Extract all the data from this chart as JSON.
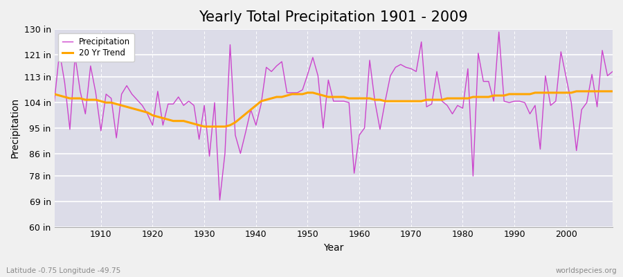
{
  "title": "Yearly Total Precipitation 1901 - 2009",
  "xlabel": "Year",
  "ylabel": "Precipitation",
  "subtitle_left": "Latitude -0.75 Longitude -49.75",
  "subtitle_right": "worldspecies.org",
  "years": [
    1901,
    1902,
    1903,
    1904,
    1905,
    1906,
    1907,
    1908,
    1909,
    1910,
    1911,
    1912,
    1913,
    1914,
    1915,
    1916,
    1917,
    1918,
    1919,
    1920,
    1921,
    1922,
    1923,
    1924,
    1925,
    1926,
    1927,
    1928,
    1929,
    1930,
    1931,
    1932,
    1933,
    1934,
    1935,
    1936,
    1937,
    1938,
    1939,
    1940,
    1941,
    1942,
    1943,
    1944,
    1945,
    1946,
    1947,
    1948,
    1949,
    1950,
    1951,
    1952,
    1953,
    1954,
    1955,
    1956,
    1957,
    1958,
    1959,
    1960,
    1961,
    1962,
    1963,
    1964,
    1965,
    1966,
    1967,
    1968,
    1969,
    1970,
    1971,
    1972,
    1973,
    1974,
    1975,
    1976,
    1977,
    1978,
    1979,
    1980,
    1981,
    1982,
    1983,
    1984,
    1985,
    1986,
    1987,
    1988,
    1989,
    1990,
    1991,
    1992,
    1993,
    1994,
    1995,
    1996,
    1997,
    1998,
    1999,
    2000,
    2001,
    2002,
    2003,
    2004,
    2005,
    2006,
    2007,
    2008,
    2009
  ],
  "precip": [
    104.5,
    122.0,
    111.0,
    94.5,
    120.5,
    108.0,
    100.0,
    117.0,
    107.5,
    94.0,
    107.0,
    105.5,
    91.5,
    107.0,
    110.0,
    107.0,
    105.0,
    103.0,
    100.0,
    96.0,
    108.0,
    96.0,
    103.5,
    103.5,
    106.0,
    103.0,
    104.5,
    103.0,
    91.0,
    103.0,
    85.0,
    104.0,
    69.5,
    86.0,
    124.5,
    92.5,
    86.0,
    93.5,
    101.5,
    96.0,
    103.5,
    116.5,
    115.0,
    117.0,
    118.5,
    107.5,
    107.5,
    107.5,
    108.5,
    114.0,
    120.0,
    113.5,
    95.0,
    112.0,
    104.5,
    104.5,
    104.5,
    104.0,
    79.0,
    92.5,
    95.0,
    119.0,
    104.5,
    94.5,
    104.5,
    113.5,
    116.5,
    117.5,
    116.5,
    116.0,
    115.0,
    125.5,
    102.5,
    103.5,
    115.0,
    104.5,
    103.0,
    100.0,
    103.0,
    102.0,
    116.0,
    78.0,
    121.5,
    111.5,
    111.5,
    104.5,
    129.0,
    104.5,
    104.0,
    104.5,
    104.5,
    104.0,
    100.0,
    103.0,
    87.5,
    113.5,
    103.0,
    104.5,
    122.0,
    113.0,
    104.0,
    87.0,
    101.5,
    104.0,
    114.0,
    102.5,
    122.5,
    113.5,
    115.0
  ],
  "trend": [
    107.0,
    106.5,
    106.0,
    105.5,
    105.5,
    105.5,
    105.0,
    105.0,
    105.0,
    104.5,
    104.0,
    104.0,
    103.5,
    103.0,
    102.5,
    102.0,
    101.5,
    101.0,
    100.5,
    99.5,
    99.0,
    98.5,
    98.0,
    97.5,
    97.5,
    97.5,
    97.0,
    96.5,
    96.0,
    95.5,
    95.5,
    95.5,
    95.5,
    95.5,
    96.0,
    97.0,
    98.5,
    100.0,
    101.5,
    103.0,
    104.5,
    105.0,
    105.5,
    106.0,
    106.0,
    106.5,
    107.0,
    107.0,
    107.0,
    107.5,
    107.5,
    107.0,
    106.5,
    106.0,
    106.0,
    106.0,
    106.0,
    105.5,
    105.5,
    105.5,
    105.5,
    105.5,
    105.0,
    105.0,
    104.5,
    104.5,
    104.5,
    104.5,
    104.5,
    104.5,
    104.5,
    104.5,
    105.0,
    105.0,
    105.0,
    105.0,
    105.5,
    105.5,
    105.5,
    105.5,
    105.5,
    106.0,
    106.0,
    106.0,
    106.0,
    106.5,
    106.5,
    106.5,
    107.0,
    107.0,
    107.0,
    107.0,
    107.0,
    107.5,
    107.5,
    107.5,
    107.5,
    107.5,
    107.5,
    107.5,
    107.5,
    108.0,
    108.0,
    108.0,
    108.0,
    108.0,
    108.0,
    108.0,
    108.0
  ],
  "precip_color": "#CC44CC",
  "trend_color": "#FFA500",
  "bg_color": "#F0F0F0",
  "plot_bg_color": "#DCDCE8",
  "grid_color": "#FFFFFF",
  "ylim": [
    60,
    130
  ],
  "yticks": [
    60,
    69,
    78,
    86,
    95,
    104,
    113,
    121,
    130
  ],
  "ytick_labels": [
    "60 in",
    "69 in",
    "78 in",
    "86 in",
    "95 in",
    "104 in",
    "113 in",
    "121 in",
    "130 in"
  ],
  "xlim": [
    1901,
    2009
  ],
  "xticks": [
    1910,
    1920,
    1930,
    1940,
    1950,
    1960,
    1970,
    1980,
    1990,
    2000
  ],
  "title_fontsize": 15,
  "axis_fontsize": 9,
  "label_fontsize": 10
}
